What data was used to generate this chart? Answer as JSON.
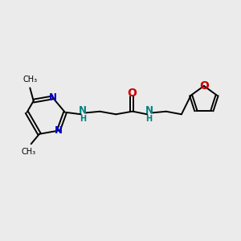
{
  "background_color": "#ebebeb",
  "bond_color": "#000000",
  "N_color": "#0000cc",
  "NH_color": "#008080",
  "O_color": "#cc0000",
  "figsize": [
    3.0,
    3.0
  ],
  "dpi": 100,
  "xlim": [
    0,
    10
  ],
  "ylim": [
    0,
    10
  ]
}
